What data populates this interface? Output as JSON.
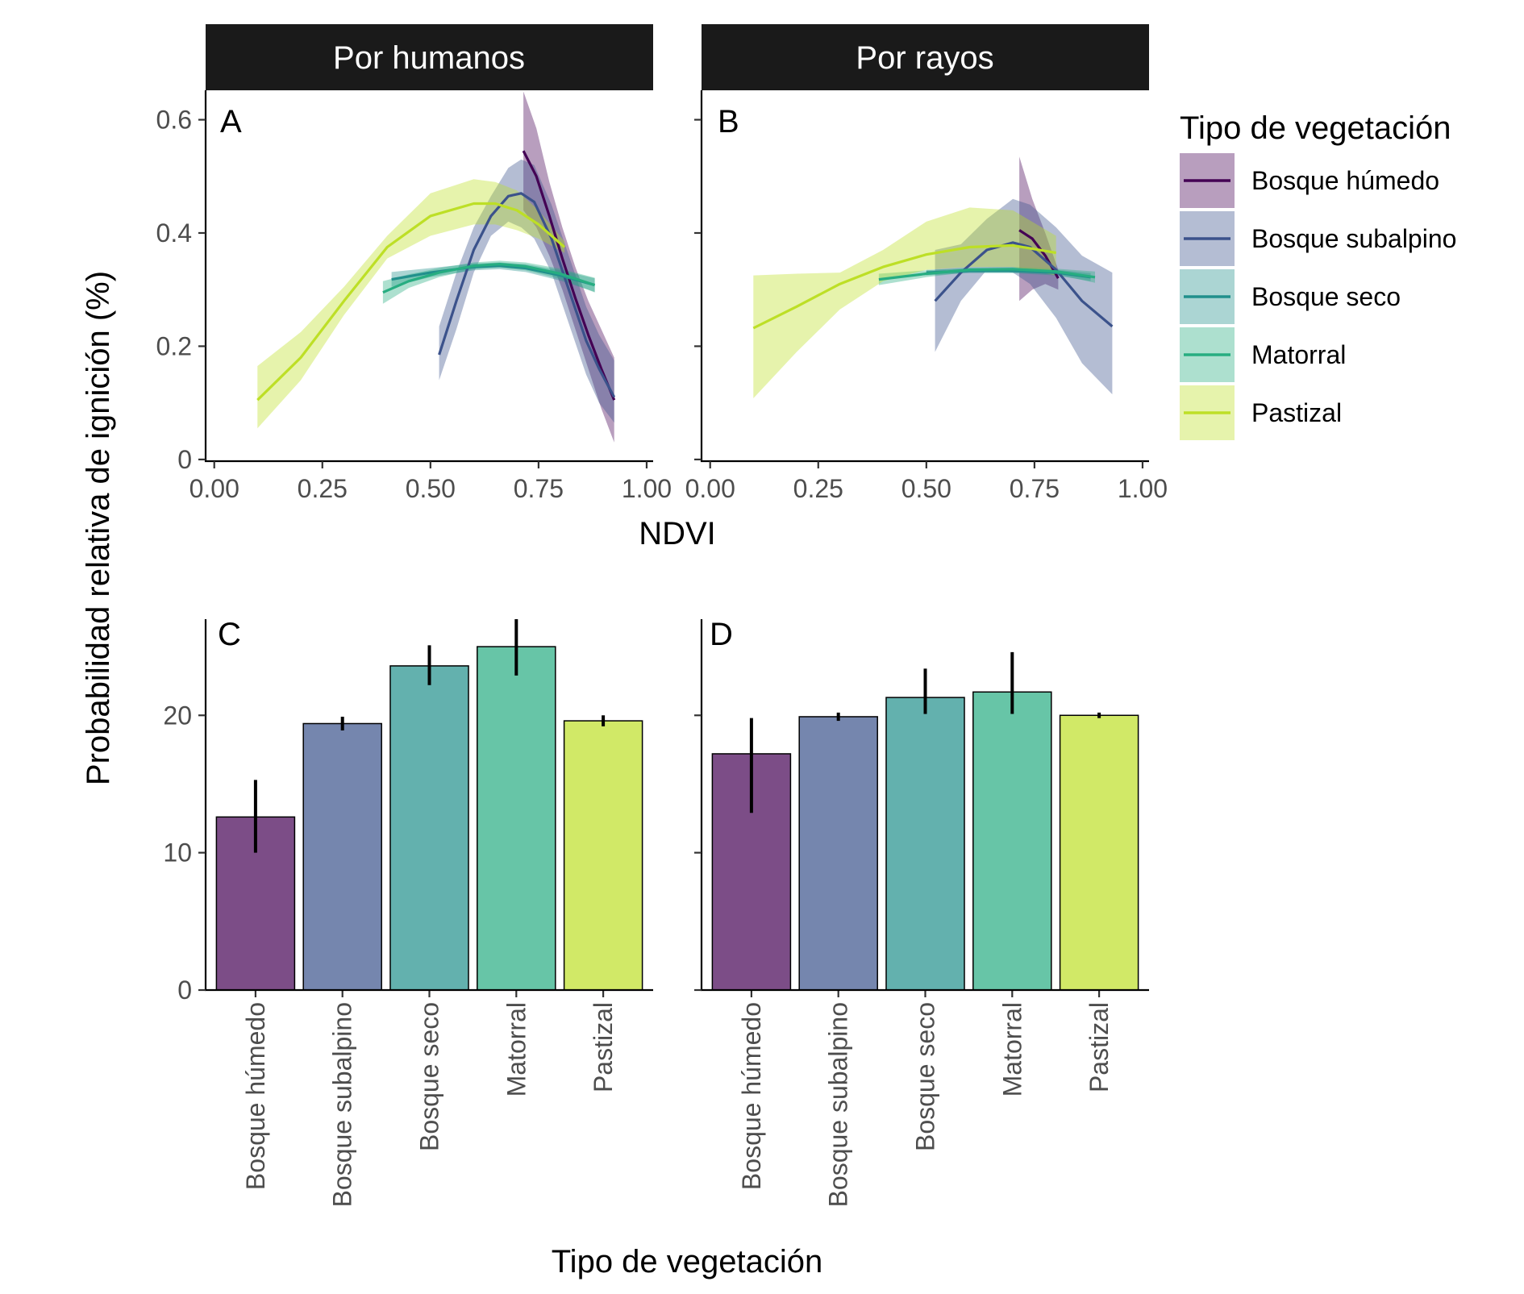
{
  "colors": {
    "Bosque húmedo": "#440154",
    "Bosque subalpino": "#3b528b",
    "Bosque seco": "#21908c",
    "Matorral": "#27ad81",
    "Pastizal": "#bddf26",
    "strip_fill": "#1a1a1a"
  },
  "facets": [
    "Por humanos",
    "Por rayos"
  ],
  "legend": {
    "title": "Tipo de vegetación",
    "items": [
      "Bosque húmedo",
      "Bosque subalpino",
      "Bosque seco",
      "Matorral",
      "Pastizal"
    ]
  },
  "chart_data": [
    {
      "panel": "A",
      "facet": "Por humanos",
      "type": "line",
      "xlabel": "NDVI",
      "ylabel": "Probabilidad relativa de ignición (%)",
      "xlim": [
        0,
        1
      ],
      "ylim": [
        0,
        0.6
      ],
      "xticks": [
        "0.00",
        "0.25",
        "0.50",
        "0.75",
        "1.00"
      ],
      "yticks": [
        "0",
        "0.2",
        "0.4",
        "0.6"
      ],
      "series": [
        {
          "name": "Bosque húmedo",
          "x": [
            0.715,
            0.745,
            0.775,
            0.805,
            0.835,
            0.865,
            0.895,
            0.925
          ],
          "y": [
            0.545,
            0.5,
            0.43,
            0.355,
            0.285,
            0.22,
            0.16,
            0.105
          ],
          "lower": [
            0.44,
            0.41,
            0.36,
            0.3,
            0.23,
            0.16,
            0.09,
            0.03
          ],
          "upper": [
            0.65,
            0.585,
            0.49,
            0.41,
            0.34,
            0.28,
            0.23,
            0.18
          ]
        },
        {
          "name": "Bosque subalpino",
          "x": [
            0.52,
            0.56,
            0.6,
            0.64,
            0.68,
            0.71,
            0.74,
            0.78,
            0.82,
            0.86,
            0.89,
            0.925
          ],
          "y": [
            0.185,
            0.28,
            0.37,
            0.43,
            0.465,
            0.47,
            0.455,
            0.39,
            0.3,
            0.21,
            0.16,
            0.11
          ],
          "lower": [
            0.14,
            0.23,
            0.33,
            0.395,
            0.42,
            0.41,
            0.39,
            0.33,
            0.24,
            0.15,
            0.1,
            0.065
          ],
          "upper": [
            0.235,
            0.33,
            0.41,
            0.465,
            0.515,
            0.53,
            0.52,
            0.45,
            0.36,
            0.27,
            0.22,
            0.175
          ]
        },
        {
          "name": "Bosque seco",
          "x": [
            0.41,
            0.5,
            0.6,
            0.66,
            0.72,
            0.8,
            0.88
          ],
          "y": [
            0.318,
            0.33,
            0.34,
            0.342,
            0.338,
            0.325,
            0.308
          ],
          "lower": [
            0.305,
            0.322,
            0.334,
            0.336,
            0.331,
            0.316,
            0.296
          ],
          "upper": [
            0.331,
            0.338,
            0.346,
            0.348,
            0.345,
            0.334,
            0.32
          ]
        },
        {
          "name": "Matorral",
          "x": [
            0.39,
            0.45,
            0.52,
            0.6,
            0.66,
            0.72,
            0.8,
            0.88
          ],
          "y": [
            0.295,
            0.315,
            0.33,
            0.342,
            0.345,
            0.341,
            0.328,
            0.308
          ],
          "lower": [
            0.275,
            0.303,
            0.322,
            0.336,
            0.339,
            0.334,
            0.319,
            0.295
          ],
          "upper": [
            0.315,
            0.327,
            0.338,
            0.348,
            0.351,
            0.348,
            0.337,
            0.321
          ]
        },
        {
          "name": "Pastizal",
          "x": [
            0.1,
            0.2,
            0.3,
            0.4,
            0.5,
            0.6,
            0.65,
            0.7,
            0.75,
            0.81
          ],
          "y": [
            0.105,
            0.18,
            0.28,
            0.375,
            0.43,
            0.452,
            0.452,
            0.44,
            0.415,
            0.375
          ],
          "lower": [
            0.055,
            0.14,
            0.255,
            0.355,
            0.395,
            0.415,
            0.415,
            0.405,
            0.39,
            0.365
          ],
          "upper": [
            0.165,
            0.225,
            0.305,
            0.395,
            0.47,
            0.495,
            0.49,
            0.475,
            0.44,
            0.385
          ]
        }
      ]
    },
    {
      "panel": "B",
      "facet": "Por rayos",
      "type": "line",
      "xlabel": "NDVI",
      "ylabel": "Probabilidad relativa de ignición (%)",
      "xlim": [
        0,
        1
      ],
      "ylim": [
        0,
        0.6
      ],
      "xticks": [
        "0.00",
        "0.25",
        "0.50",
        "0.75",
        "1.00"
      ],
      "yticks": [
        "0",
        "0.2",
        "0.4",
        "0.6"
      ],
      "series": [
        {
          "name": "Bosque húmedo",
          "x": [
            0.715,
            0.745,
            0.775,
            0.805
          ],
          "y": [
            0.405,
            0.39,
            0.36,
            0.32
          ],
          "lower": [
            0.28,
            0.3,
            0.31,
            0.3
          ],
          "upper": [
            0.535,
            0.46,
            0.4,
            0.335
          ]
        },
        {
          "name": "Bosque subalpino",
          "x": [
            0.52,
            0.58,
            0.64,
            0.7,
            0.74,
            0.8,
            0.86,
            0.93
          ],
          "y": [
            0.28,
            0.33,
            0.37,
            0.383,
            0.375,
            0.335,
            0.28,
            0.235
          ],
          "lower": [
            0.19,
            0.28,
            0.335,
            0.33,
            0.31,
            0.25,
            0.17,
            0.115
          ],
          "upper": [
            0.37,
            0.38,
            0.425,
            0.46,
            0.45,
            0.41,
            0.36,
            0.33
          ]
        },
        {
          "name": "Bosque seco",
          "x": [
            0.5,
            0.6,
            0.7,
            0.8,
            0.88
          ],
          "y": [
            0.33,
            0.333,
            0.333,
            0.33,
            0.322
          ],
          "lower": [
            0.325,
            0.329,
            0.329,
            0.325,
            0.315
          ],
          "upper": [
            0.335,
            0.337,
            0.337,
            0.335,
            0.329
          ]
        },
        {
          "name": "Matorral",
          "x": [
            0.39,
            0.5,
            0.6,
            0.7,
            0.8,
            0.89
          ],
          "y": [
            0.318,
            0.328,
            0.335,
            0.336,
            0.332,
            0.322
          ],
          "lower": [
            0.308,
            0.322,
            0.331,
            0.332,
            0.327,
            0.312
          ],
          "upper": [
            0.328,
            0.334,
            0.339,
            0.34,
            0.337,
            0.332
          ]
        },
        {
          "name": "Pastizal",
          "x": [
            0.1,
            0.2,
            0.3,
            0.4,
            0.5,
            0.6,
            0.7,
            0.8
          ],
          "y": [
            0.232,
            0.27,
            0.31,
            0.34,
            0.362,
            0.375,
            0.378,
            0.365
          ],
          "lower": [
            0.108,
            0.19,
            0.265,
            0.315,
            0.335,
            0.34,
            0.34,
            0.325
          ],
          "upper": [
            0.325,
            0.328,
            0.33,
            0.37,
            0.42,
            0.445,
            0.44,
            0.395
          ]
        }
      ]
    },
    {
      "panel": "C",
      "facet": "Por humanos",
      "type": "bar",
      "xlabel": "Tipo de vegetación",
      "ylabel": "Probabilidad relativa de ignición (%)",
      "ylim": [
        0,
        27
      ],
      "yticks": [
        "0",
        "10",
        "20"
      ],
      "categories": [
        "Bosque húmedo",
        "Bosque subalpino",
        "Bosque seco",
        "Matorral",
        "Pastizal"
      ],
      "values": [
        12.6,
        19.4,
        23.6,
        25.0,
        19.6
      ],
      "error_low": [
        10.0,
        18.9,
        22.2,
        22.9,
        19.2
      ],
      "error_high": [
        15.3,
        19.9,
        25.1,
        27.0,
        20.0
      ]
    },
    {
      "panel": "D",
      "facet": "Por rayos",
      "type": "bar",
      "xlabel": "Tipo de vegetación",
      "ylabel": "Probabilidad relativa de ignición (%)",
      "ylim": [
        0,
        27
      ],
      "yticks": [
        "0",
        "10",
        "20"
      ],
      "categories": [
        "Bosque húmedo",
        "Bosque subalpino",
        "Bosque seco",
        "Matorral",
        "Pastizal"
      ],
      "values": [
        17.2,
        19.9,
        21.3,
        21.7,
        20.0
      ],
      "error_low": [
        12.9,
        19.6,
        20.1,
        20.1,
        19.8
      ],
      "error_high": [
        19.8,
        20.2,
        23.4,
        24.6,
        20.2
      ]
    }
  ]
}
